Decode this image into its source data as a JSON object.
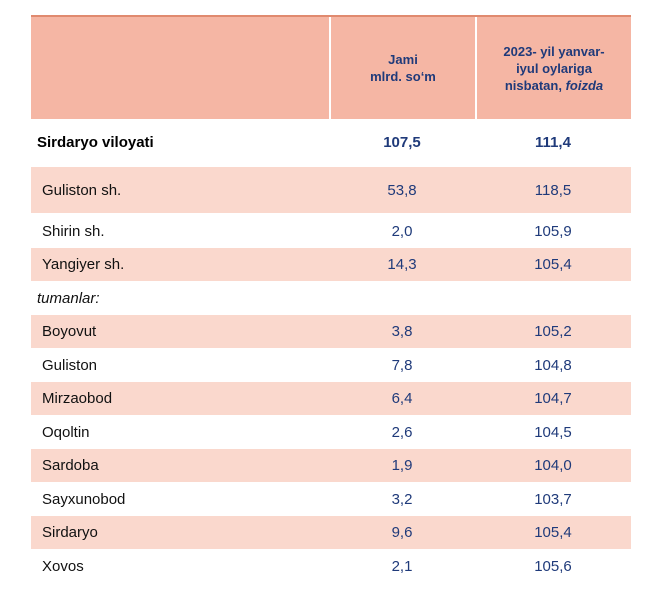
{
  "header": {
    "col0": "",
    "col1_line1": "Jami",
    "col1_line2": "mlrd. so‘m",
    "col2_line1": "2023- yil yanvar-",
    "col2_line2": "iyul oylariga",
    "col2_line3": "nisbatan,",
    "col2_line3_italic": "foizda"
  },
  "rows": [
    {
      "name": "Sirdaryo viloyati",
      "total": "107,5",
      "pct": "111,4"
    },
    {
      "name": "Guliston  sh.",
      "total": "53,8",
      "pct": "118,5"
    },
    {
      "name": "Shirin sh.",
      "total": "2,0",
      "pct": "105,9"
    },
    {
      "name": "Yangiyer sh.",
      "total": "14,3",
      "pct": "105,4"
    },
    {
      "name": "tumanlar:",
      "total": "",
      "pct": ""
    },
    {
      "name": "Boyovut",
      "total": "3,8",
      "pct": "105,2"
    },
    {
      "name": "Guliston",
      "total": "7,8",
      "pct": "104,8"
    },
    {
      "name": "Mirzaobod",
      "total": "6,4",
      "pct": "104,7"
    },
    {
      "name": "Oqoltin",
      "total": "2,6",
      "pct": "104,5"
    },
    {
      "name": "Sardoba",
      "total": "1,9",
      "pct": "104,0"
    },
    {
      "name": "Sayxunobod",
      "total": "3,2",
      "pct": "103,7"
    },
    {
      "name": "Sirdaryo",
      "total": "9,6",
      "pct": "105,4"
    },
    {
      "name": "Xovos",
      "total": "2,1",
      "pct": "105,6"
    }
  ]
}
